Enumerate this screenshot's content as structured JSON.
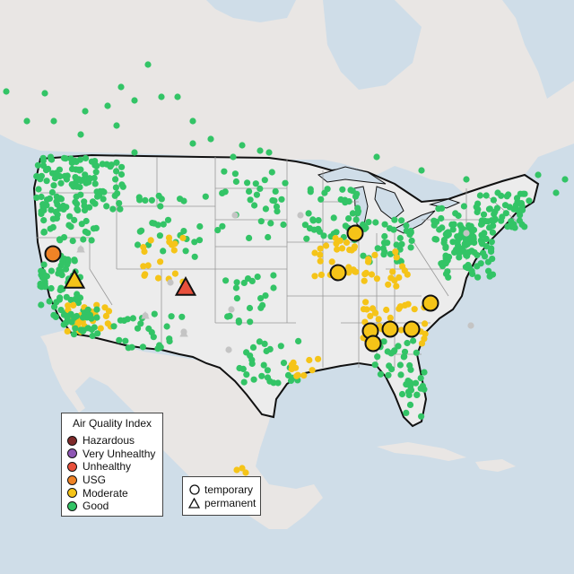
{
  "legend": {
    "title": "Air Quality Index",
    "categories": [
      {
        "label": "Hazardous",
        "color": "#7e2a2a"
      },
      {
        "label": "Very Unhealthy",
        "color": "#8e56b4"
      },
      {
        "label": "Unhealthy",
        "color": "#e8503c"
      },
      {
        "label": "USG",
        "color": "#ef8326"
      },
      {
        "label": "Moderate",
        "color": "#f5c418"
      },
      {
        "label": "Good",
        "color": "#33c466"
      }
    ],
    "shapes": [
      {
        "label": "temporary",
        "icon": "circle-icon"
      },
      {
        "label": "permanent",
        "icon": "triangle-icon"
      }
    ]
  },
  "colors": {
    "water": "#cfdde8",
    "land": "#ececec",
    "us_land": "#ececec",
    "border": "#111111",
    "state_line": "#9a9a9a",
    "no_data": "#c4c4c4"
  }
}
